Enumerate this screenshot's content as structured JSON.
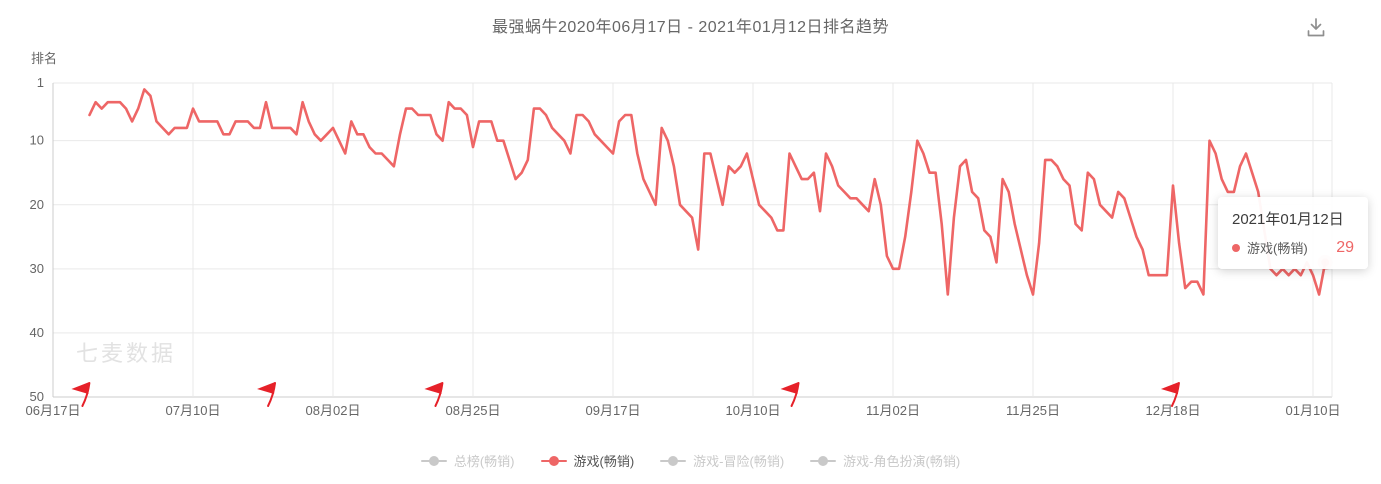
{
  "header": {
    "title": "最强蜗牛2020年06月17日 - 2021年01月12日排名趋势"
  },
  "icons": {
    "download": "download-icon",
    "flag": "milestone-flag-icon"
  },
  "watermark": "七麦数据",
  "colors": {
    "line": "#ee6666",
    "flag": "#e62129",
    "inactive": "#c9c9c9",
    "grid": "#e9e9e9",
    "axis": "#cccccc",
    "text": "#666666",
    "tooltip_value": "#ee6666",
    "watermark": "#e2e2e2"
  },
  "chart_data": {
    "type": "line",
    "title": "最强蜗牛2020年06月17日 - 2021年01月12日排名趋势",
    "ylabel": "排名",
    "xlabel": "",
    "grid": true,
    "y_inverted": true,
    "y_ticks": [
      1,
      10,
      20,
      30,
      40,
      50
    ],
    "ylim": [
      1,
      50
    ],
    "x_tick_labels": [
      "06月17日",
      "07月10日",
      "08月02日",
      "08月25日",
      "09月17日",
      "10月10日",
      "11月02日",
      "11月25日",
      "12月18日",
      "01月10日"
    ],
    "x_tick_days": [
      0,
      23,
      46,
      69,
      92,
      115,
      138,
      161,
      184,
      207
    ],
    "x_day_range": [
      0,
      209
    ],
    "legend_position": "bottom",
    "series": [
      {
        "name": "总榜(畅销)",
        "active": false
      },
      {
        "name": "游戏(畅销)",
        "active": true,
        "color": "#ee6666",
        "start_day": 6,
        "values": [
          6,
          4,
          5,
          4,
          4,
          4,
          5,
          7,
          5,
          2,
          3,
          7,
          8,
          9,
          8,
          8,
          8,
          5,
          7,
          7,
          7,
          7,
          9,
          9,
          7,
          7,
          7,
          8,
          8,
          4,
          8,
          8,
          8,
          8,
          9,
          4,
          7,
          9,
          10,
          9,
          8,
          10,
          12,
          7,
          9,
          9,
          11,
          12,
          12,
          13,
          14,
          9,
          5,
          5,
          6,
          6,
          6,
          9,
          10,
          4,
          5,
          5,
          6,
          11,
          7,
          7,
          7,
          10,
          10,
          13,
          16,
          15,
          13,
          5,
          5,
          6,
          8,
          9,
          10,
          12,
          6,
          6,
          7,
          9,
          10,
          11,
          12,
          7,
          6,
          6,
          12,
          16,
          18,
          20,
          8,
          10,
          14,
          20,
          21,
          22,
          27,
          12,
          12,
          16,
          20,
          14,
          15,
          14,
          12,
          16,
          20,
          21,
          22,
          24,
          24,
          12,
          14,
          16,
          16,
          15,
          21,
          12,
          14,
          17,
          18,
          19,
          19,
          20,
          21,
          16,
          20,
          28,
          30,
          30,
          25,
          18,
          10,
          12,
          15,
          15,
          23,
          34,
          22,
          14,
          13,
          18,
          19,
          24,
          25,
          29,
          16,
          18,
          23,
          27,
          31,
          34,
          26,
          13,
          13,
          14,
          16,
          17,
          23,
          24,
          15,
          16,
          20,
          21,
          22,
          18,
          19,
          22,
          25,
          27,
          31,
          31,
          31,
          31,
          17,
          26,
          33,
          32,
          32,
          34,
          10,
          12,
          16,
          18,
          18,
          14,
          12,
          15,
          18,
          24,
          30,
          31,
          30,
          31,
          30,
          31,
          29,
          31,
          34,
          29
        ]
      },
      {
        "name": "游戏-冒险(畅销)",
        "active": false
      },
      {
        "name": "游戏-角色扮演(畅销)",
        "active": false
      }
    ],
    "flags_day_positions": [
      4.5,
      35,
      62.5,
      121,
      183.5
    ],
    "tooltip": {
      "date": "2021年01月12日",
      "series_label": "游戏(畅销)",
      "value": "29"
    },
    "highlight_point": {
      "day": 209,
      "rank": 29
    }
  }
}
